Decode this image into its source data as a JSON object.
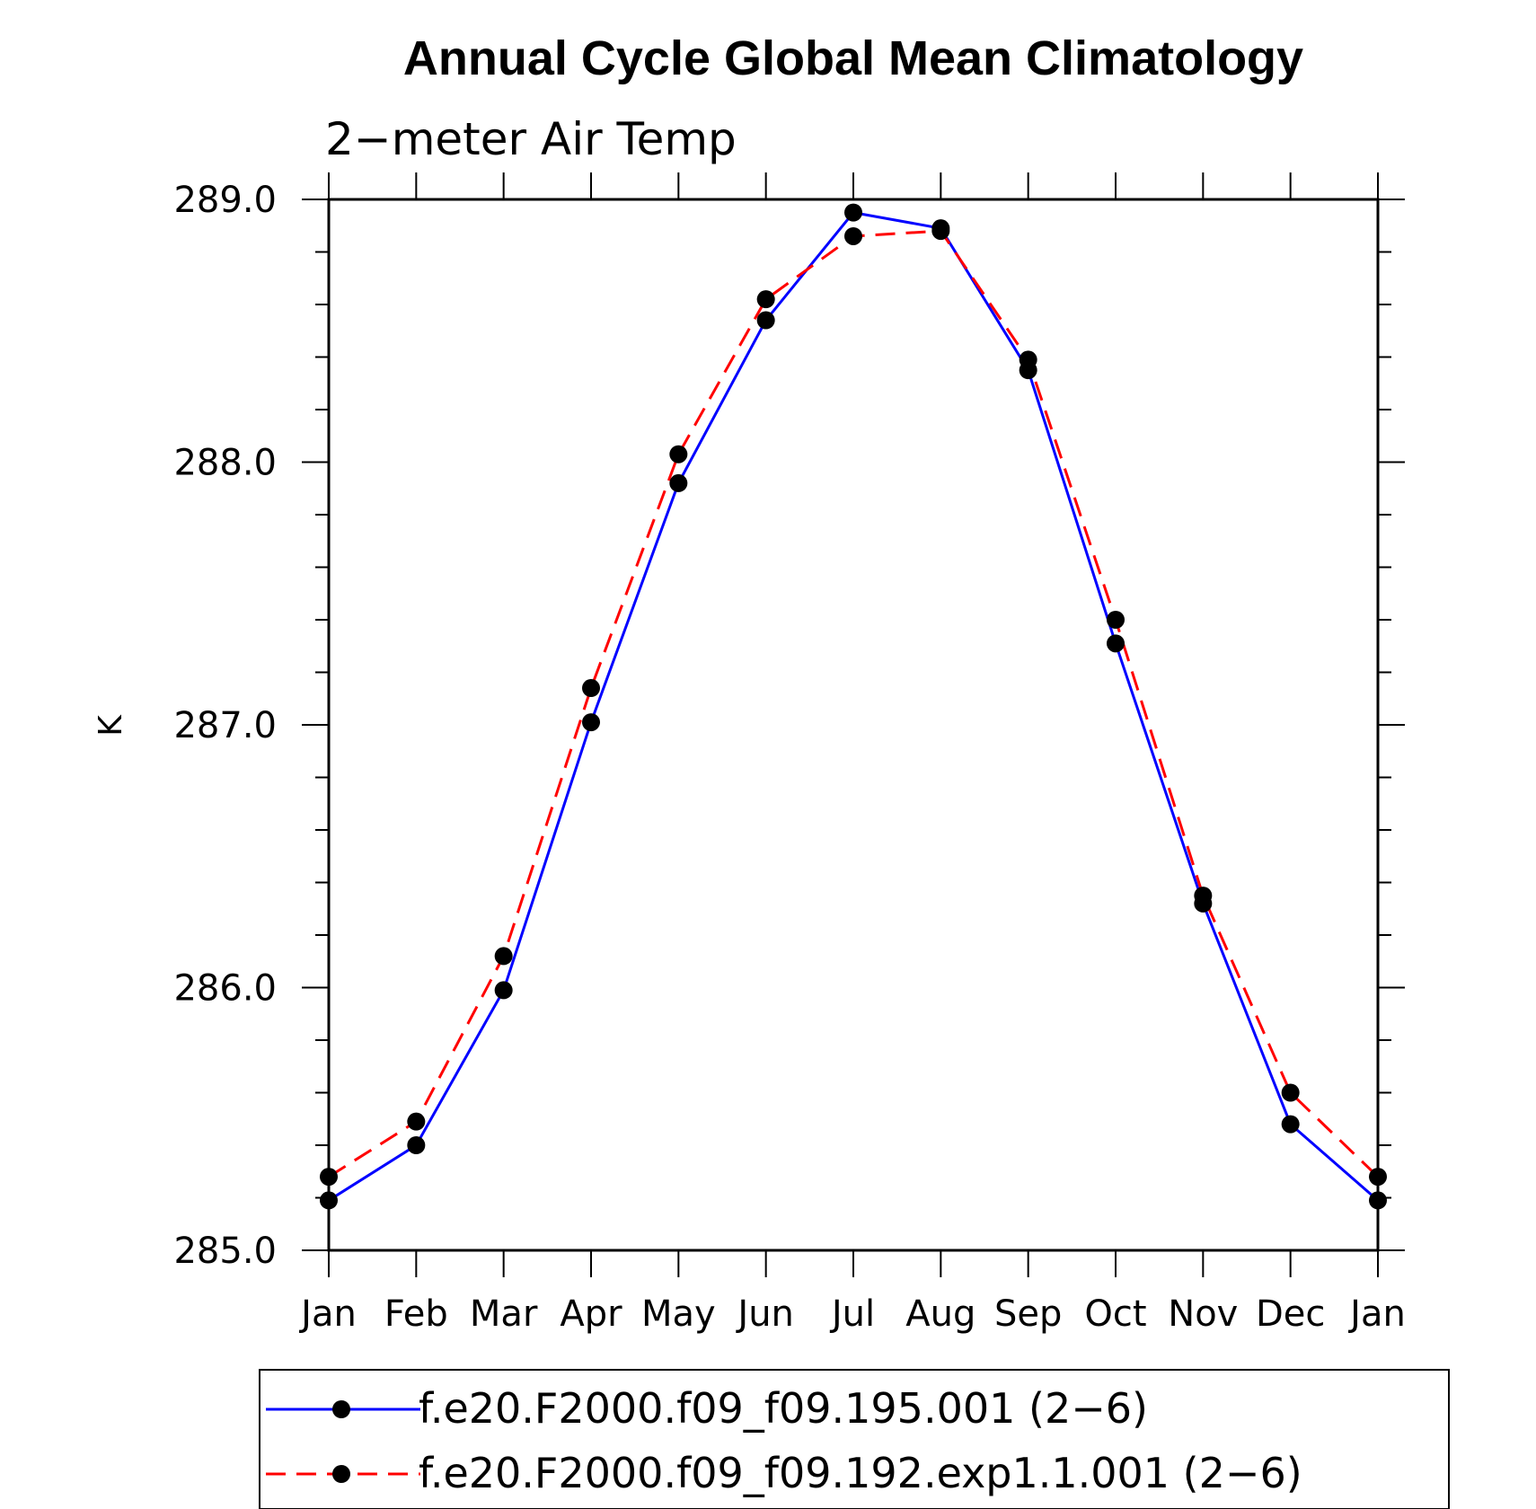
{
  "chart_data": {
    "type": "line",
    "title": "Annual Cycle Global Mean Climatology",
    "subtitle": "2−meter Air Temp",
    "xlabel": "",
    "ylabel": "K",
    "categories": [
      "Jan",
      "Feb",
      "Mar",
      "Apr",
      "May",
      "Jun",
      "Jul",
      "Aug",
      "Sep",
      "Oct",
      "Nov",
      "Dec",
      "Jan"
    ],
    "ylim": [
      285.0,
      289.0
    ],
    "yticks": [
      285.0,
      286.0,
      287.0,
      288.0,
      289.0
    ],
    "ytick_labels": [
      "285.0",
      "286.0",
      "287.0",
      "288.0",
      "289.0"
    ],
    "series": [
      {
        "name": "f.e20.F2000.f09_f09.195.001 (2−6)",
        "color": "#0000ff",
        "style": "solid",
        "values": [
          285.19,
          285.4,
          285.99,
          287.01,
          287.92,
          288.54,
          288.95,
          288.89,
          288.35,
          287.31,
          286.32,
          285.48,
          285.19
        ]
      },
      {
        "name": "f.e20.F2000.f09_f09.192.exp1.1.001 (2−6)",
        "color": "#ff0000",
        "style": "dashed",
        "values": [
          285.28,
          285.49,
          286.12,
          287.14,
          288.03,
          288.62,
          288.86,
          288.88,
          288.39,
          287.4,
          286.35,
          285.6,
          285.28
        ]
      }
    ],
    "legend_position": "bottom"
  }
}
